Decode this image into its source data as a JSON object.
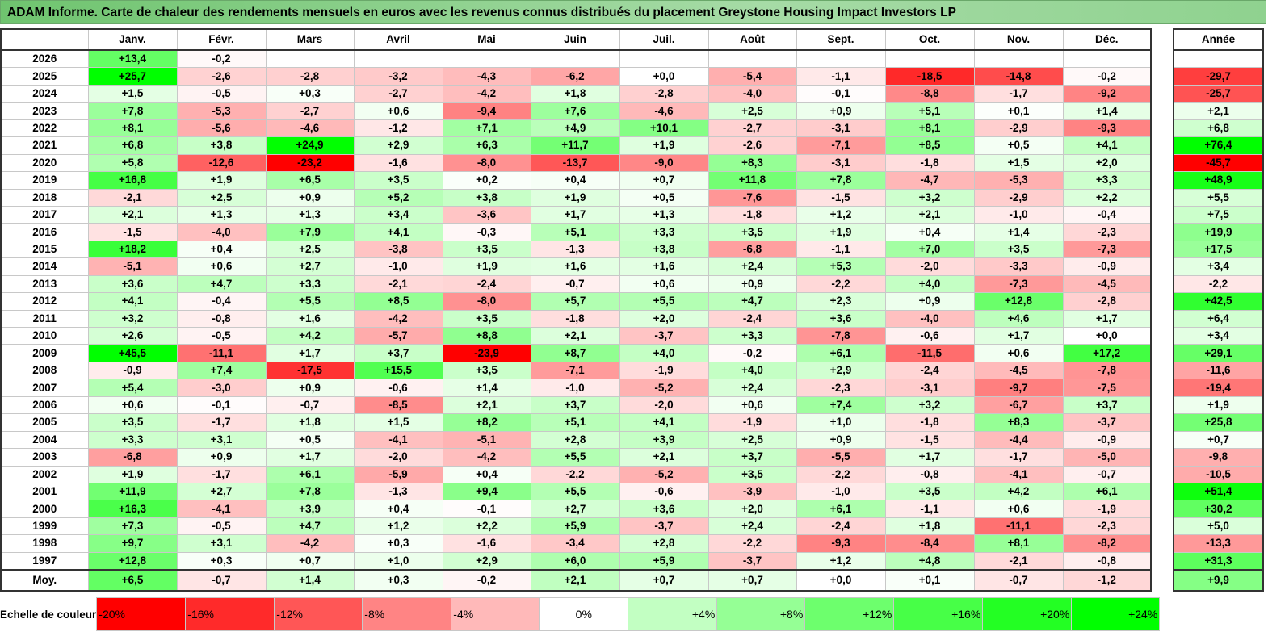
{
  "title": "ADAM Informe. Carte de chaleur des rendements mensuels en euros avec les revenus connus distribués du placement Greystone Housing Impact Investors LP",
  "chart_data": {
    "type": "heatmap",
    "title": "ADAM Informe. Carte de chaleur des rendements mensuels en euros avec les revenus connus distribués du placement Greystone Housing Impact Investors LP",
    "months": [
      "Janv.",
      "Févr.",
      "Mars",
      "Avril",
      "Mai",
      "Juin",
      "Juil.",
      "Août",
      "Sept.",
      "Oct.",
      "Nov.",
      "Déc."
    ],
    "annual_header": "Année",
    "rows": [
      {
        "year": "2026",
        "values": [
          "+13,4",
          "-0,2",
          "",
          "",
          "",
          "",
          "",
          "",
          "",
          "",
          "",
          ""
        ],
        "annual": ""
      },
      {
        "year": "2025",
        "values": [
          "+25,7",
          "-2,6",
          "-2,8",
          "-3,2",
          "-4,3",
          "-6,2",
          "+0,0",
          "-5,4",
          "-1,1",
          "-18,5",
          "-14,8",
          "-0,2"
        ],
        "annual": "-29,7"
      },
      {
        "year": "2024",
        "values": [
          "+1,5",
          "-0,5",
          "+0,3",
          "-2,7",
          "-4,2",
          "+1,8",
          "-2,8",
          "-4,0",
          "-0,1",
          "-8,8",
          "-1,7",
          "-9,2"
        ],
        "annual": "-25,7"
      },
      {
        "year": "2023",
        "values": [
          "+7,8",
          "-5,3",
          "-2,7",
          "+0,6",
          "-9,4",
          "+7,6",
          "-4,6",
          "+2,5",
          "+0,9",
          "+5,1",
          "+0,1",
          "+1,4"
        ],
        "annual": "+2,1"
      },
      {
        "year": "2022",
        "values": [
          "+8,1",
          "-5,6",
          "-4,6",
          "-1,2",
          "+7,1",
          "+4,9",
          "+10,1",
          "-2,7",
          "-3,1",
          "+8,1",
          "-2,9",
          "-9,3"
        ],
        "annual": "+6,8"
      },
      {
        "year": "2021",
        "values": [
          "+6,8",
          "+3,8",
          "+24,9",
          "+2,9",
          "+6,3",
          "+11,7",
          "+1,9",
          "-2,6",
          "-7,1",
          "+8,5",
          "+0,5",
          "+4,1"
        ],
        "annual": "+76,4"
      },
      {
        "year": "2020",
        "values": [
          "+5,8",
          "-12,6",
          "-23,2",
          "-1,6",
          "-8,0",
          "-13,7",
          "-9,0",
          "+8,3",
          "-3,1",
          "-1,8",
          "+1,5",
          "+2,0"
        ],
        "annual": "-45,7"
      },
      {
        "year": "2019",
        "values": [
          "+16,8",
          "+1,9",
          "+6,5",
          "+3,5",
          "+0,2",
          "+0,4",
          "+0,7",
          "+11,8",
          "+7,8",
          "-4,7",
          "-5,3",
          "+3,3"
        ],
        "annual": "+48,9"
      },
      {
        "year": "2018",
        "values": [
          "-2,1",
          "+2,5",
          "+0,9",
          "+5,2",
          "+3,8",
          "+1,9",
          "+0,5",
          "-7,6",
          "-1,5",
          "+3,2",
          "-2,9",
          "+2,2"
        ],
        "annual": "+5,5"
      },
      {
        "year": "2017",
        "values": [
          "+2,1",
          "+1,3",
          "+1,3",
          "+3,4",
          "-3,6",
          "+1,7",
          "+1,3",
          "-1,8",
          "+1,2",
          "+2,1",
          "-1,0",
          "-0,4"
        ],
        "annual": "+7,5"
      },
      {
        "year": "2016",
        "values": [
          "-1,5",
          "-4,0",
          "+7,9",
          "+4,1",
          "-0,3",
          "+5,1",
          "+3,3",
          "+3,5",
          "+1,9",
          "+0,4",
          "+1,4",
          "-2,3"
        ],
        "annual": "+19,9"
      },
      {
        "year": "2015",
        "values": [
          "+18,2",
          "+0,4",
          "+2,5",
          "-3,8",
          "+3,5",
          "-1,3",
          "+3,8",
          "-6,8",
          "-1,1",
          "+7,0",
          "+3,5",
          "-7,3"
        ],
        "annual": "+17,5"
      },
      {
        "year": "2014",
        "values": [
          "-5,1",
          "+0,6",
          "+2,7",
          "-1,0",
          "+1,9",
          "+1,6",
          "+1,6",
          "+2,4",
          "+5,3",
          "-2,0",
          "-3,3",
          "-0,9"
        ],
        "annual": "+3,4"
      },
      {
        "year": "2013",
        "values": [
          "+3,6",
          "+4,7",
          "+3,3",
          "-2,1",
          "-2,4",
          "-0,7",
          "+0,6",
          "+0,9",
          "-2,2",
          "+4,0",
          "-7,3",
          "-4,5"
        ],
        "annual": "-2,2"
      },
      {
        "year": "2012",
        "values": [
          "+4,1",
          "-0,4",
          "+5,5",
          "+8,5",
          "-8,0",
          "+5,7",
          "+5,5",
          "+4,7",
          "+2,3",
          "+0,9",
          "+12,8",
          "-2,8"
        ],
        "annual": "+42,5"
      },
      {
        "year": "2011",
        "values": [
          "+3,2",
          "-0,8",
          "+1,6",
          "-4,2",
          "+3,5",
          "-1,8",
          "+2,0",
          "-2,4",
          "+3,6",
          "-4,0",
          "+4,6",
          "+1,7"
        ],
        "annual": "+6,4"
      },
      {
        "year": "2010",
        "values": [
          "+2,6",
          "-0,5",
          "+4,2",
          "-5,7",
          "+8,8",
          "+2,1",
          "-3,7",
          "+3,3",
          "-7,8",
          "-0,6",
          "+1,7",
          "+0,0"
        ],
        "annual": "+3,4"
      },
      {
        "year": "2009",
        "values": [
          "+45,5",
          "-11,1",
          "+1,7",
          "+3,7",
          "-23,9",
          "+8,7",
          "+4,0",
          "-0,2",
          "+6,1",
          "-11,5",
          "+0,6",
          "+17,2"
        ],
        "annual": "+29,1"
      },
      {
        "year": "2008",
        "values": [
          "-0,9",
          "+7,4",
          "-17,5",
          "+15,5",
          "+3,5",
          "-7,1",
          "-1,9",
          "+4,0",
          "+2,9",
          "-2,4",
          "-4,5",
          "-7,8"
        ],
        "annual": "-11,6"
      },
      {
        "year": "2007",
        "values": [
          "+5,4",
          "-3,0",
          "+0,9",
          "-0,6",
          "+1,4",
          "-1,0",
          "-5,2",
          "+2,4",
          "-2,3",
          "-3,1",
          "-9,7",
          "-7,5"
        ],
        "annual": "-19,4"
      },
      {
        "year": "2006",
        "values": [
          "+0,6",
          "-0,1",
          "-0,7",
          "-8,5",
          "+2,1",
          "+3,7",
          "-2,0",
          "+0,6",
          "+7,4",
          "+3,2",
          "-6,7",
          "+3,7"
        ],
        "annual": "+1,9"
      },
      {
        "year": "2005",
        "values": [
          "+3,5",
          "-1,7",
          "+1,8",
          "+1,5",
          "+8,2",
          "+5,1",
          "+4,1",
          "-1,9",
          "+1,0",
          "-1,8",
          "+8,3",
          "-3,7"
        ],
        "annual": "+25,8"
      },
      {
        "year": "2004",
        "values": [
          "+3,3",
          "+3,1",
          "+0,5",
          "-4,1",
          "-5,1",
          "+2,8",
          "+3,9",
          "+2,5",
          "+0,9",
          "-1,5",
          "-4,4",
          "-0,9"
        ],
        "annual": "+0,7"
      },
      {
        "year": "2003",
        "values": [
          "-6,8",
          "+0,9",
          "+1,7",
          "-2,0",
          "-4,2",
          "+5,5",
          "+2,1",
          "+3,7",
          "-5,5",
          "+1,7",
          "-1,7",
          "-5,0"
        ],
        "annual": "-9,8"
      },
      {
        "year": "2002",
        "values": [
          "+1,9",
          "-1,7",
          "+6,1",
          "-5,9",
          "+0,4",
          "-2,2",
          "-5,2",
          "+3,5",
          "-2,2",
          "-0,8",
          "-4,1",
          "-0,7"
        ],
        "annual": "-10,5"
      },
      {
        "year": "2001",
        "values": [
          "+11,9",
          "+2,7",
          "+7,8",
          "-1,3",
          "+9,4",
          "+5,5",
          "-0,6",
          "-3,9",
          "-1,0",
          "+3,5",
          "+4,2",
          "+6,1"
        ],
        "annual": "+51,4"
      },
      {
        "year": "2000",
        "values": [
          "+16,3",
          "-4,1",
          "+3,9",
          "+0,4",
          "-0,1",
          "+2,7",
          "+3,6",
          "+2,0",
          "+6,1",
          "-1,1",
          "+0,6",
          "-1,9"
        ],
        "annual": "+30,2"
      },
      {
        "year": "1999",
        "values": [
          "+7,3",
          "-0,5",
          "+4,7",
          "+1,2",
          "+2,2",
          "+5,9",
          "-3,7",
          "+2,4",
          "-2,4",
          "+1,8",
          "-11,1",
          "-2,3"
        ],
        "annual": "+5,0"
      },
      {
        "year": "1998",
        "values": [
          "+9,7",
          "+3,1",
          "-4,2",
          "+0,3",
          "-1,6",
          "-3,4",
          "+2,8",
          "-2,2",
          "-9,3",
          "-8,4",
          "+8,1",
          "-8,2"
        ],
        "annual": "-13,3"
      },
      {
        "year": "1997",
        "values": [
          "+12,8",
          "+0,3",
          "+0,7",
          "+1,0",
          "+2,9",
          "+6,0",
          "+5,9",
          "-3,7",
          "+1,2",
          "+4,8",
          "-2,1",
          "-0,8"
        ],
        "annual": "+31,3"
      }
    ],
    "average": {
      "label": "Moy.",
      "values": [
        "+6,5",
        "-0,7",
        "+1,4",
        "+0,3",
        "-0,2",
        "+2,1",
        "+0,7",
        "+0,7",
        "+0,0",
        "+0,1",
        "-0,7",
        "-1,2"
      ],
      "annual": "+9,9"
    },
    "scale": {
      "label": "Echelle de couleur",
      "stops": [
        "-20%",
        "-16%",
        "-12%",
        "-8%",
        "-4%",
        "0%",
        "+4%",
        "+8%",
        "+12%",
        "+16%",
        "+20%",
        "+24%"
      ],
      "stop_values": [
        -20,
        -16,
        -12,
        -8,
        -4,
        0,
        4,
        8,
        12,
        16,
        20,
        24
      ]
    },
    "colors": {
      "negative": "#ff0000",
      "neutral": "#ffffff",
      "positive": "#00ff00"
    }
  }
}
